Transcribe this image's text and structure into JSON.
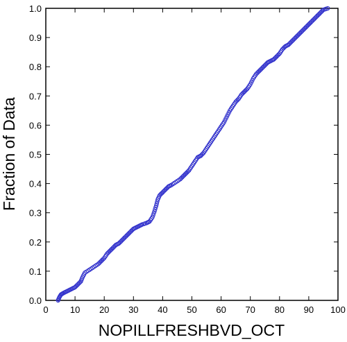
{
  "chart_data": {
    "type": "scatter",
    "title": "",
    "xlabel": "NOPILLFRESHBVD_OCT",
    "ylabel": "Fraction of Data",
    "xlim": [
      0,
      100
    ],
    "ylim": [
      0,
      1
    ],
    "x_ticks": [
      "0",
      "10",
      "20",
      "30",
      "40",
      "50",
      "60",
      "70",
      "80",
      "90",
      "100"
    ],
    "y_ticks": [
      "0.0",
      "0.1",
      "0.2",
      "0.3",
      "0.4",
      "0.5",
      "0.6",
      "0.7",
      "0.8",
      "0.9",
      "1.0"
    ],
    "grid": false,
    "marker": "open-circle",
    "marker_color": "#3333cc",
    "series": [
      {
        "points": [
          [
            4.2,
            0.0
          ],
          [
            4.6,
            0.01
          ],
          [
            5.2,
            0.02
          ],
          [
            6.0,
            0.025
          ],
          [
            7.0,
            0.03
          ],
          [
            8.0,
            0.035
          ],
          [
            9.0,
            0.04
          ],
          [
            10.0,
            0.045
          ],
          [
            11.0,
            0.055
          ],
          [
            12.0,
            0.065
          ],
          [
            12.6,
            0.08
          ],
          [
            13.4,
            0.095
          ],
          [
            15.0,
            0.105
          ],
          [
            16.5,
            0.115
          ],
          [
            18.0,
            0.125
          ],
          [
            19.0,
            0.135
          ],
          [
            20.0,
            0.145
          ],
          [
            21.0,
            0.16
          ],
          [
            22.0,
            0.17
          ],
          [
            23.0,
            0.18
          ],
          [
            24.0,
            0.19
          ],
          [
            25.0,
            0.195
          ],
          [
            26.0,
            0.205
          ],
          [
            27.0,
            0.215
          ],
          [
            28.0,
            0.225
          ],
          [
            29.0,
            0.235
          ],
          [
            30.0,
            0.245
          ],
          [
            31.0,
            0.25
          ],
          [
            32.0,
            0.255
          ],
          [
            33.0,
            0.26
          ],
          [
            34.5,
            0.265
          ],
          [
            35.5,
            0.27
          ],
          [
            36.5,
            0.285
          ],
          [
            37.2,
            0.305
          ],
          [
            37.8,
            0.325
          ],
          [
            38.3,
            0.345
          ],
          [
            39.0,
            0.36
          ],
          [
            40.0,
            0.37
          ],
          [
            41.0,
            0.38
          ],
          [
            42.0,
            0.39
          ],
          [
            43.0,
            0.395
          ],
          [
            44.5,
            0.405
          ],
          [
            46.0,
            0.415
          ],
          [
            47.0,
            0.425
          ],
          [
            48.0,
            0.435
          ],
          [
            49.0,
            0.445
          ],
          [
            50.0,
            0.46
          ],
          [
            51.0,
            0.475
          ],
          [
            52.0,
            0.49
          ],
          [
            53.0,
            0.495
          ],
          [
            54.0,
            0.505
          ],
          [
            55.0,
            0.52
          ],
          [
            56.0,
            0.535
          ],
          [
            57.0,
            0.55
          ],
          [
            58.0,
            0.565
          ],
          [
            59.0,
            0.58
          ],
          [
            60.0,
            0.595
          ],
          [
            61.0,
            0.61
          ],
          [
            62.0,
            0.63
          ],
          [
            63.0,
            0.65
          ],
          [
            64.0,
            0.665
          ],
          [
            65.0,
            0.68
          ],
          [
            66.0,
            0.69
          ],
          [
            67.0,
            0.705
          ],
          [
            68.0,
            0.715
          ],
          [
            69.0,
            0.725
          ],
          [
            70.0,
            0.74
          ],
          [
            71.0,
            0.76
          ],
          [
            72.0,
            0.775
          ],
          [
            73.0,
            0.785
          ],
          [
            74.0,
            0.795
          ],
          [
            75.0,
            0.805
          ],
          [
            76.0,
            0.815
          ],
          [
            77.0,
            0.82
          ],
          [
            78.0,
            0.825
          ],
          [
            79.0,
            0.835
          ],
          [
            80.0,
            0.845
          ],
          [
            81.0,
            0.86
          ],
          [
            82.0,
            0.87
          ],
          [
            83.0,
            0.875
          ],
          [
            84.0,
            0.885
          ],
          [
            85.0,
            0.895
          ],
          [
            86.0,
            0.905
          ],
          [
            87.0,
            0.915
          ],
          [
            88.0,
            0.925
          ],
          [
            89.0,
            0.935
          ],
          [
            90.0,
            0.945
          ],
          [
            91.0,
            0.955
          ],
          [
            92.0,
            0.965
          ],
          [
            93.0,
            0.975
          ],
          [
            94.0,
            0.985
          ],
          [
            95.0,
            0.995
          ],
          [
            96.5,
            1.0
          ]
        ]
      }
    ]
  }
}
